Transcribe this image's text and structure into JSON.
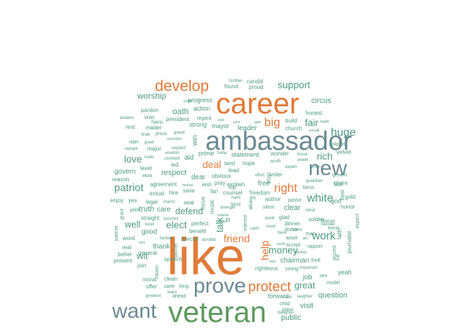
{
  "colors": {
    "orange": "#e07b39",
    "slate": "#6c8a94",
    "teal": "#4e9a83",
    "green": "#5e9a5f",
    "background": "#ffffff"
  },
  "words": [
    {
      "text": "like",
      "color": "orange"
    },
    {
      "text": "veteran",
      "color": "green"
    },
    {
      "text": "career",
      "color": "orange"
    },
    {
      "text": "ambassador",
      "color": "slate"
    },
    {
      "text": "want",
      "color": "slate"
    },
    {
      "text": "prove",
      "color": "slate"
    },
    {
      "text": "new",
      "color": "slate"
    },
    {
      "text": "develop",
      "color": "orange"
    },
    {
      "text": "protect",
      "color": "orange"
    },
    {
      "text": "right",
      "color": "orange"
    },
    {
      "text": "big",
      "color": "orange"
    },
    {
      "text": "friend",
      "color": "orange"
    },
    {
      "text": "deal",
      "color": "orange"
    },
    {
      "text": "help",
      "color": "orange"
    },
    {
      "text": "support",
      "color": "teal"
    },
    {
      "text": "huge",
      "color": "teal"
    },
    {
      "text": "white",
      "color": "teal"
    },
    {
      "text": "work",
      "color": "teal"
    },
    {
      "text": "money",
      "color": "teal"
    },
    {
      "text": "great",
      "color": "teal"
    },
    {
      "text": "patriot",
      "color": "teal"
    },
    {
      "text": "elect",
      "color": "teal"
    },
    {
      "text": "defend",
      "color": "teal"
    },
    {
      "text": "love",
      "color": "teal"
    },
    {
      "text": "rich",
      "color": "teal"
    },
    {
      "text": "fair",
      "color": "teal"
    },
    {
      "text": "talk",
      "color": "teal"
    },
    {
      "text": "wit",
      "color": "teal"
    },
    {
      "text": "well",
      "color": "teal"
    },
    {
      "text": "oath",
      "color": "teal"
    },
    {
      "text": "worship",
      "color": "teal"
    },
    {
      "text": "circus",
      "color": "teal"
    },
    {
      "text": "question",
      "color": "teal"
    },
    {
      "text": "visit",
      "color": "teal"
    },
    {
      "text": "public",
      "color": "teal"
    },
    {
      "text": "clear",
      "color": "teal"
    },
    {
      "text": "free",
      "color": "teal"
    },
    {
      "text": "leader",
      "color": "teal"
    },
    {
      "text": "respect",
      "color": "teal"
    },
    {
      "text": "truth",
      "color": "teal"
    },
    {
      "text": "care",
      "color": "teal"
    },
    {
      "text": "good",
      "color": "teal"
    },
    {
      "text": "thank",
      "color": "teal"
    },
    {
      "text": "govern",
      "color": "teal"
    },
    {
      "text": "chairman",
      "color": "teal"
    },
    {
      "text": "job",
      "color": "teal"
    },
    {
      "text": "dear",
      "color": "teal"
    },
    {
      "text": "aid",
      "color": "teal"
    },
    {
      "text": "win",
      "color": "teal"
    },
    {
      "text": "strong",
      "color": "teal"
    },
    {
      "text": "action",
      "color": "teal"
    },
    {
      "text": "progress",
      "color": "teal"
    },
    {
      "text": "mayor",
      "color": "teal"
    },
    {
      "text": "honest",
      "color": "teal"
    },
    {
      "text": "church",
      "color": "teal"
    },
    {
      "text": "build",
      "color": "teal"
    },
    {
      "text": "proud",
      "color": "teal"
    },
    {
      "text": "found",
      "color": "teal"
    },
    {
      "text": "candid",
      "color": "teal"
    },
    {
      "text": "brother",
      "color": "teal"
    },
    {
      "text": "statement",
      "color": "teal"
    },
    {
      "text": "prime",
      "color": "teal"
    },
    {
      "text": "land",
      "color": "teal"
    },
    {
      "text": "hope",
      "color": "teal"
    },
    {
      "text": "wonder",
      "color": "teal"
    },
    {
      "text": "lead",
      "color": "teal"
    },
    {
      "text": "top",
      "color": "teal"
    },
    {
      "text": "explain",
      "color": "teal"
    },
    {
      "text": "counsel",
      "color": "teal"
    },
    {
      "text": "freedom",
      "color": "teal"
    },
    {
      "text": "author",
      "color": "teal"
    },
    {
      "text": "pastor",
      "color": "teal"
    },
    {
      "text": "god",
      "color": "teal"
    },
    {
      "text": "fast",
      "color": "teal"
    },
    {
      "text": "share",
      "color": "teal"
    },
    {
      "text": "gold",
      "color": "teal"
    },
    {
      "text": "honor",
      "color": "teal"
    },
    {
      "text": "dolphin",
      "color": "teal"
    },
    {
      "text": "velvet",
      "color": "teal"
    },
    {
      "text": "growth",
      "color": "teal"
    },
    {
      "text": "soldier",
      "color": "teal"
    },
    {
      "text": "glad",
      "color": "teal"
    },
    {
      "text": "bless",
      "color": "teal"
    },
    {
      "text": "yeah",
      "color": "teal"
    },
    {
      "text": "journalist",
      "color": "teal"
    },
    {
      "text": "faith",
      "color": "teal"
    },
    {
      "text": "rapport",
      "color": "teal"
    },
    {
      "text": "humor",
      "color": "teal"
    },
    {
      "text": "dinner",
      "color": "teal"
    },
    {
      "text": "doctor",
      "color": "teal"
    },
    {
      "text": "trend",
      "color": "teal"
    },
    {
      "text": "main",
      "color": "teal"
    },
    {
      "text": "sex",
      "color": "teal"
    },
    {
      "text": "model",
      "color": "teal"
    },
    {
      "text": "thrill",
      "color": "teal"
    },
    {
      "text": "young",
      "color": "teal"
    },
    {
      "text": "righteous",
      "color": "teal"
    },
    {
      "text": "forward",
      "color": "teal"
    },
    {
      "text": "child",
      "color": "teal"
    },
    {
      "text": "global",
      "color": "teal"
    },
    {
      "text": "calm",
      "color": "teal"
    },
    {
      "text": "laughter",
      "color": "teal"
    },
    {
      "text": "accord",
      "color": "teal"
    },
    {
      "text": "full",
      "color": "teal"
    },
    {
      "text": "expect",
      "color": "teal"
    },
    {
      "text": "best",
      "color": "teal"
    },
    {
      "text": "accept",
      "color": "teal"
    },
    {
      "text": "asset",
      "color": "teal"
    },
    {
      "text": "art",
      "color": "teal"
    },
    {
      "text": "silent",
      "color": "teal"
    },
    {
      "text": "quick",
      "color": "teal"
    },
    {
      "text": "revel",
      "color": "teal"
    },
    {
      "text": "favor",
      "color": "teal"
    },
    {
      "text": "count",
      "color": "teal"
    },
    {
      "text": "earn",
      "color": "teal"
    },
    {
      "text": "credit",
      "color": "teal"
    },
    {
      "text": "genius",
      "color": "teal"
    },
    {
      "text": "important",
      "color": "teal"
    },
    {
      "text": "founder",
      "color": "teal"
    },
    {
      "text": "mind",
      "color": "teal"
    },
    {
      "text": "guardian",
      "color": "teal"
    },
    {
      "text": "certain",
      "color": "teal"
    },
    {
      "text": "boost",
      "color": "teal"
    },
    {
      "text": "sweet",
      "color": "teal"
    },
    {
      "text": "expert",
      "color": "teal"
    },
    {
      "text": "voter",
      "color": "teal"
    },
    {
      "text": "effort",
      "color": "teal"
    },
    {
      "text": "trust",
      "color": "teal"
    },
    {
      "text": "worth",
      "color": "teal"
    },
    {
      "text": "gain",
      "color": "teal"
    },
    {
      "text": "pure",
      "color": "teal"
    },
    {
      "text": "pick",
      "color": "teal"
    },
    {
      "text": "usual",
      "color": "teal"
    },
    {
      "text": "laugh",
      "color": "teal"
    },
    {
      "text": "regard",
      "color": "teal"
    },
    {
      "text": "prefer",
      "color": "teal"
    },
    {
      "text": "president",
      "color": "teal"
    },
    {
      "text": "hero",
      "color": "teal"
    },
    {
      "text": "vow",
      "color": "teal"
    },
    {
      "text": "pardon",
      "color": "teal"
    },
    {
      "text": "matter",
      "color": "teal"
    },
    {
      "text": "rest",
      "color": "teal"
    },
    {
      "text": "wisdom",
      "color": "teal"
    },
    {
      "text": "rider",
      "color": "teal"
    },
    {
      "text": "greet",
      "color": "teal"
    },
    {
      "text": "true",
      "color": "teal"
    },
    {
      "text": "jesus",
      "color": "teal"
    },
    {
      "text": "grand",
      "color": "teal"
    },
    {
      "text": "success",
      "color": "teal"
    },
    {
      "text": "highlight",
      "color": "teal"
    },
    {
      "text": "major",
      "color": "teal"
    },
    {
      "text": "environ",
      "color": "teal"
    },
    {
      "text": "expand",
      "color": "teal"
    },
    {
      "text": "mate",
      "color": "teal"
    },
    {
      "text": "constant",
      "color": "teal"
    },
    {
      "text": "led",
      "color": "teal"
    },
    {
      "text": "level",
      "color": "teal"
    },
    {
      "text": "wow",
      "color": "teal"
    },
    {
      "text": "reason",
      "color": "teal"
    },
    {
      "text": "agreement",
      "color": "teal"
    },
    {
      "text": "mutual",
      "color": "teal"
    },
    {
      "text": "wish",
      "color": "teal"
    },
    {
      "text": "pray",
      "color": "teal"
    },
    {
      "text": "obvious",
      "color": "teal"
    },
    {
      "text": "fan",
      "color": "teal"
    },
    {
      "text": "enjoy",
      "color": "teal"
    },
    {
      "text": "yes",
      "color": "teal"
    },
    {
      "text": "actual",
      "color": "teal"
    },
    {
      "text": "hire",
      "color": "teal"
    },
    {
      "text": "legal",
      "color": "teal"
    },
    {
      "text": "march",
      "color": "teal"
    },
    {
      "text": "seal",
      "color": "teal"
    },
    {
      "text": "save",
      "color": "teal"
    },
    {
      "text": "focus",
      "color": "teal"
    },
    {
      "text": "music",
      "color": "teal"
    },
    {
      "text": "grant",
      "color": "teal"
    },
    {
      "text": "pilot",
      "color": "teal"
    },
    {
      "text": "straight",
      "color": "teal"
    },
    {
      "text": "word",
      "color": "teal"
    },
    {
      "text": "lucid",
      "color": "teal"
    },
    {
      "text": "succinct",
      "color": "teal"
    },
    {
      "text": "perfect",
      "color": "teal"
    },
    {
      "text": "benefit",
      "color": "teal"
    },
    {
      "text": "strength",
      "color": "teal"
    },
    {
      "text": "smarter",
      "color": "teal"
    },
    {
      "text": "kind",
      "color": "teal"
    },
    {
      "text": "fit",
      "color": "teal"
    },
    {
      "text": "frank",
      "color": "teal"
    },
    {
      "text": "sky",
      "color": "teal"
    },
    {
      "text": "allow",
      "color": "teal"
    },
    {
      "text": "interest",
      "color": "teal"
    },
    {
      "text": "cash",
      "color": "teal"
    },
    {
      "text": "better",
      "color": "teal"
    },
    {
      "text": "partner",
      "color": "teal"
    },
    {
      "text": "real",
      "color": "teal"
    },
    {
      "text": "familiar",
      "color": "teal"
    },
    {
      "text": "special",
      "color": "teal"
    },
    {
      "text": "acrobat",
      "color": "teal"
    },
    {
      "text": "nice",
      "color": "teal"
    },
    {
      "text": "present",
      "color": "teal"
    },
    {
      "text": "general",
      "color": "teal"
    },
    {
      "text": "join",
      "color": "teal"
    },
    {
      "text": "speech",
      "color": "teal"
    },
    {
      "text": "citizen",
      "color": "teal"
    },
    {
      "text": "winner",
      "color": "teal"
    },
    {
      "text": "moral",
      "color": "teal"
    },
    {
      "text": "clean",
      "color": "teal"
    },
    {
      "text": "offer",
      "color": "teal"
    },
    {
      "text": "sane",
      "color": "teal"
    },
    {
      "text": "king",
      "color": "teal"
    },
    {
      "text": "learn",
      "color": "teal"
    },
    {
      "text": "greatest",
      "color": "teal"
    },
    {
      "text": "ahead",
      "color": "teal"
    },
    {
      "text": "daughter",
      "color": "teal"
    },
    {
      "text": "faster",
      "color": "teal"
    },
    {
      "text": "haha",
      "color": "teal"
    }
  ]
}
